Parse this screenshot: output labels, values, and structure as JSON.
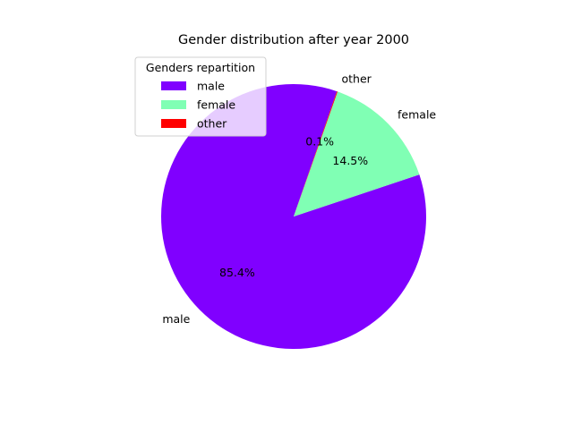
{
  "chart_data": {
    "type": "pie",
    "title": "Gender distribution after year 2000",
    "slices": [
      {
        "label": "male",
        "value": 85.4,
        "pct_label": "85.4%",
        "color": "#8000ff"
      },
      {
        "label": "female",
        "value": 14.5,
        "pct_label": "14.5%",
        "color": "#80ffb4"
      },
      {
        "label": "other",
        "value": 0.1,
        "pct_label": "0.1%",
        "color": "#ff0000"
      }
    ],
    "start_angle_deg": 71,
    "direction": "counterclockwise",
    "legend": {
      "title": "Genders repartition",
      "placement": "upper-left",
      "entries": [
        "male",
        "female",
        "other"
      ]
    }
  }
}
